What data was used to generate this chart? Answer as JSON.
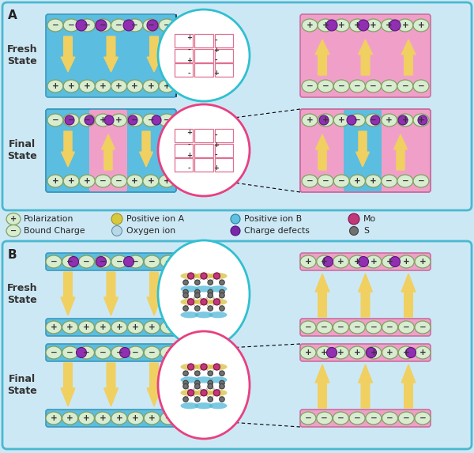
{
  "bg_color": "#cde8f5",
  "blue_box_color": "#5bbde0",
  "pink_box_color": "#f0a0c8",
  "arrow_color": "#f0d060",
  "arrow_edge": "#c8a820",
  "circle_cyan_color": "#30c0d0",
  "circle_pink_color": "#e84080",
  "charge_oval_bg": "#d8ecd0",
  "charge_oval_edge": "#80a060",
  "yellow_ion_color": "#d8c840",
  "yellow_ion_edge": "#a09020",
  "cyan_ion_color": "#60c0e0",
  "cyan_ion_edge": "#2080a0",
  "purple_ion_color": "#9030b0",
  "purple_ion_edge": "#601080",
  "mo_color": "#c03878",
  "mo_edge": "#801050",
  "s_color": "#707070",
  "s_edge": "#404040",
  "oxygen_color": "#b8d8e8",
  "oxygen_edge": "#6090a8",
  "defect_color": "#7828a8",
  "defect_edge": "#501080",
  "grid_line_color": "#e07090",
  "panel_edge_color": "#4ab8d0",
  "label_A": "A",
  "label_B": "B",
  "fresh_state": "Fresh\nState",
  "final_state": "Final\nState"
}
